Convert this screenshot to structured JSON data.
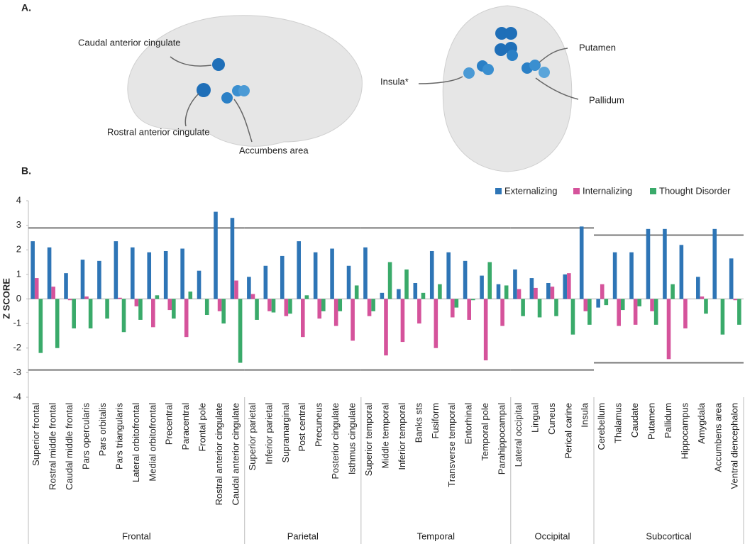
{
  "panel_a": {
    "label": "A.",
    "brain_labels": [
      "Caudal anterior cingulate",
      "Rostral anterior cingulate",
      "Accumbens area",
      "Insula*",
      "Putamen",
      "Pallidum"
    ]
  },
  "chart_data": {
    "type": "bar",
    "label": "B.",
    "y_label": "Z SCORE",
    "ylim": [
      -4,
      4
    ],
    "yticks": [
      -4,
      -3,
      -2,
      -1,
      0,
      1,
      2,
      3,
      4
    ],
    "categories": [
      "Superior frontal",
      "Rostral middle frontal",
      "Caudal middle frontal",
      "Pars opercularis",
      "Pars orbitalis",
      "Pars triangularis",
      "Lateral orbitofrontal",
      "Medial orbitofrontal",
      "Precentral",
      "Paracentral",
      "Frontal pole",
      "Rostral anterior cingulate",
      "Caudal anterior cingulate",
      "Superior parietal",
      "Inferior parietal",
      "Supramarginal",
      "Post central",
      "Precuneus",
      "Posterior cingulate",
      "Isthmus cingulate",
      "Superior temporal",
      "Middle temporal",
      "Inferior temporal",
      "Banks sts",
      "Fusiform",
      "Transverse temporal",
      "Entorhinal",
      "Temporal pole",
      "Parahippocampal",
      "Lateral occipital",
      "Lingual",
      "Cuneus",
      "Perical carine",
      "Insula",
      "Cerebellum",
      "Thalamus",
      "Caudate",
      "Putamen",
      "Pallidum",
      "Hippocampus",
      "Amygdala",
      "Accumbens area",
      "Ventral diencephalon"
    ],
    "groups": [
      {
        "label": "Frontal",
        "size": 13,
        "threshold": 2.89
      },
      {
        "label": "Parietal",
        "size": 7,
        "threshold": 2.89
      },
      {
        "label": "Temporal",
        "size": 9,
        "threshold": 2.89
      },
      {
        "label": "Occipital",
        "size": 5,
        "threshold": 2.89
      },
      {
        "label": "Subcortical",
        "size": 9,
        "threshold": 2.6
      }
    ],
    "legend": "top-right",
    "series": [
      {
        "name": "Externalizing",
        "color": "#2e75b6",
        "values": [
          2.35,
          2.1,
          1.05,
          1.6,
          1.55,
          2.35,
          2.1,
          1.9,
          1.95,
          2.05,
          1.15,
          3.55,
          3.3,
          0.9,
          1.35,
          1.75,
          2.35,
          1.9,
          2.05,
          1.35,
          2.1,
          0.25,
          0.4,
          0.65,
          1.95,
          1.9,
          1.55,
          0.95,
          0.6,
          1.2,
          0.85,
          0.65,
          1.0,
          2.95,
          -0.35,
          1.9,
          1.9,
          2.85,
          2.85,
          2.2,
          0.9,
          2.85,
          1.65
        ]
      },
      {
        "name": "Internalizing",
        "color": "#d5539b",
        "values": [
          0.85,
          0.5,
          -0.05,
          0.1,
          0,
          0.05,
          -0.3,
          -1.15,
          -0.45,
          -1.55,
          0,
          -0.5,
          0.75,
          0.2,
          -0.5,
          -0.7,
          -1.55,
          -0.8,
          -1.1,
          -1.7,
          -0.7,
          -2.3,
          -1.75,
          -1.0,
          -2.0,
          -0.75,
          -0.85,
          -2.5,
          -1.1,
          0.4,
          0.45,
          0.5,
          1.05,
          -0.5,
          0.6,
          -1.1,
          -1.05,
          -0.5,
          -2.45,
          -1.2,
          0.1,
          0,
          -0.05
        ]
      },
      {
        "name": "Thought Disorder",
        "color": "#3aaa6a",
        "values": [
          -2.2,
          -2.0,
          -1.2,
          -1.2,
          -0.8,
          -1.35,
          -0.85,
          0.15,
          -0.8,
          0.3,
          -0.65,
          -1.0,
          -2.6,
          -0.85,
          -0.55,
          -0.6,
          0.15,
          -0.5,
          -0.5,
          0.55,
          -0.5,
          1.5,
          1.2,
          0.25,
          0.6,
          -0.35,
          -0.05,
          1.5,
          0.55,
          -0.7,
          -0.75,
          -0.7,
          -1.45,
          -1.05,
          -0.25,
          -0.45,
          -0.3,
          -1.05,
          0.6,
          0,
          -0.6,
          -1.45,
          -1.05
        ]
      }
    ]
  }
}
